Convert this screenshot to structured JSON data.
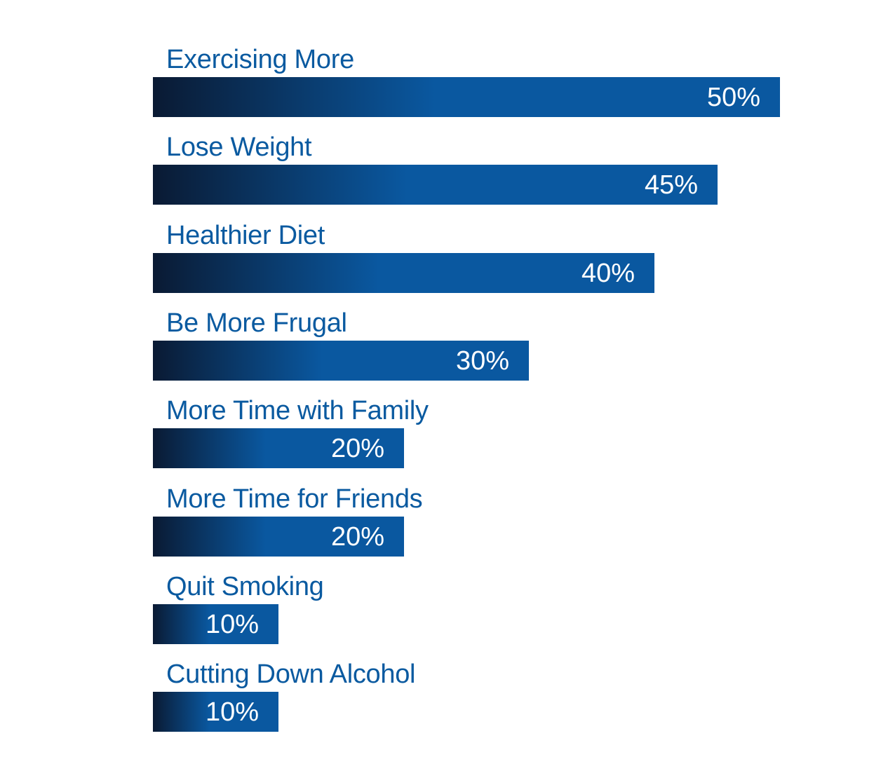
{
  "chart_data": {
    "type": "bar",
    "orientation": "horizontal",
    "categories": [
      "Exercising More",
      "Lose Weight",
      "Healthier Diet",
      "Be More Frugal",
      "More Time with Family",
      "More Time for Friends",
      "Quit Smoking",
      "Cutting Down Alcohol"
    ],
    "values": [
      50,
      45,
      40,
      30,
      20,
      20,
      10,
      10
    ],
    "value_labels": [
      "50%",
      "45%",
      "40%",
      "30%",
      "20%",
      "20%",
      "10%",
      "10%"
    ],
    "unit": "%",
    "xlim": [
      0,
      50
    ],
    "grid": false,
    "legend": "none",
    "colors": {
      "label_text": "#0a5aa0",
      "bar_gradient_start": "#0a1a33",
      "bar_gradient_end": "#0a58a0",
      "value_text": "#ffffff"
    }
  }
}
